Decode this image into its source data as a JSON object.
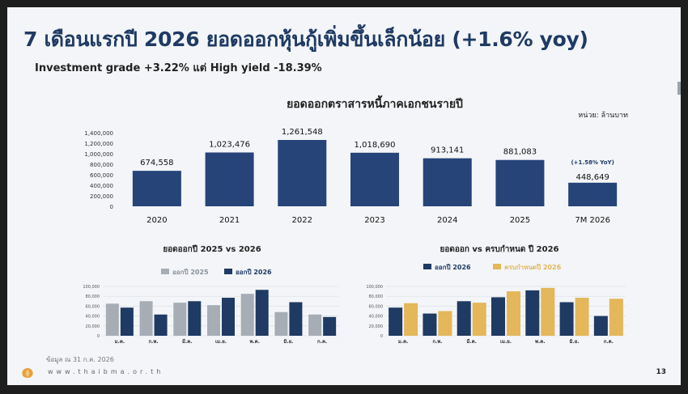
{
  "slide": {
    "title": "7 เดือนแรกปี 2026 ยอดออกหุ้นกู้เพิ่มขึ้นเล็กน้อย (+1.6% yoy)",
    "subtitle": "Investment grade +3.22% แต่ High yield -18.39%",
    "source_note": "ข้อมูล ณ 31 ก.ค. 2026",
    "website": "www.thaibma.or.th",
    "page_number": "13"
  },
  "chart_data": [
    {
      "type": "bar",
      "title": "ยอดออกตราสารหนี้ภาคเอกชนรายปี",
      "unit_note": "หน่วย: ล้านบาท",
      "categories": [
        "2020",
        "2021",
        "2022",
        "2023",
        "2024",
        "2025",
        "7M 2026"
      ],
      "values": [
        674558,
        1023476,
        1261548,
        1018690,
        913141,
        881083,
        448649
      ],
      "value_labels": [
        "674,558",
        "1,023,476",
        "1,261,548",
        "1,018,690",
        "913,141",
        "881,083",
        "448,649"
      ],
      "annotation": "(+1.58% YoY)",
      "ylim": [
        0,
        1400000
      ],
      "yticks": [
        "0",
        "200,000",
        "400,000",
        "600,000",
        "800,000",
        "1,000,000",
        "1,200,000",
        "1,400,000"
      ],
      "colors": [
        "#264478"
      ]
    },
    {
      "type": "bar",
      "title": "ยอดออกปี 2025 vs 2026",
      "categories": [
        "ม.ค.",
        "ก.พ.",
        "มี.ค.",
        "เม.ย.",
        "พ.ค.",
        "มิ.ย.",
        "ก.ค."
      ],
      "series": [
        {
          "name": "ออกปี 2025",
          "values": [
            65000,
            70000,
            67000,
            62000,
            85000,
            48000,
            43000
          ]
        },
        {
          "name": "ออกปี 2026",
          "values": [
            57000,
            43000,
            70000,
            77000,
            93000,
            68000,
            38000
          ]
        }
      ],
      "ylim": [
        0,
        100000
      ],
      "yticks": [
        "0",
        "20,000",
        "40,000",
        "60,000",
        "80,000",
        "100,000"
      ],
      "colors": [
        "#a6adb5",
        "#1f3a63"
      ],
      "legend": "top"
    },
    {
      "type": "bar",
      "title": "ยอดออก  vs ครบกำหนด ปี 2026",
      "categories": [
        "ม.ค.",
        "ก.พ.",
        "มี.ค.",
        "เม.ย.",
        "พ.ค.",
        "มิ.ย.",
        "ก.ค."
      ],
      "series": [
        {
          "name": "ออกปี 2026",
          "values": [
            57000,
            45000,
            70000,
            78000,
            92000,
            68000,
            40000
          ]
        },
        {
          "name": "ครบกำหนดปี 2026",
          "values": [
            66000,
            50000,
            67000,
            90000,
            97000,
            77000,
            75000
          ]
        }
      ],
      "ylim": [
        0,
        100000
      ],
      "yticks": [
        "0",
        "20,000",
        "40,000",
        "60,000",
        "80,000",
        "100,000"
      ],
      "colors": [
        "#1f3a63",
        "#e3b75a"
      ],
      "legend": "top"
    }
  ]
}
